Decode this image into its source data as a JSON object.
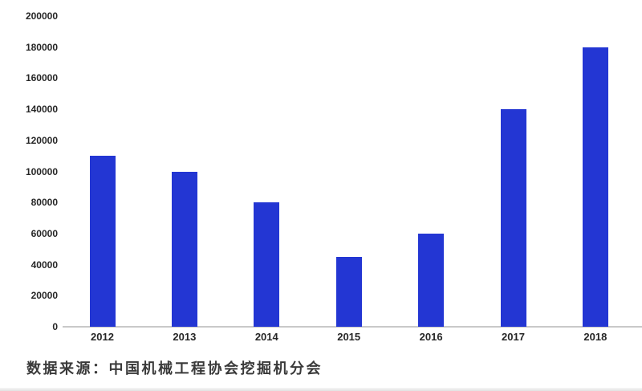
{
  "chart_data": {
    "type": "bar",
    "categories": [
      "2012",
      "2013",
      "2014",
      "2015",
      "2016",
      "2017",
      "2018"
    ],
    "values": [
      110000,
      100000,
      80000,
      45000,
      60000,
      140000,
      180000
    ],
    "title": "",
    "xlabel": "",
    "ylabel": "",
    "ylim": [
      0,
      200000
    ],
    "ytick_step": 20000,
    "ytick_labels": [
      "0",
      "20000",
      "40000",
      "60000",
      "80000",
      "100000",
      "120000",
      "140000",
      "160000",
      "180000",
      "200000"
    ],
    "grid": false,
    "legend": false,
    "bar_color": "#2336d3",
    "axis_line_color": "#c9c9c9",
    "tick_text_color": "#262626",
    "source_note": "数据来源：中国机械工程协会挖掘机分会"
  }
}
